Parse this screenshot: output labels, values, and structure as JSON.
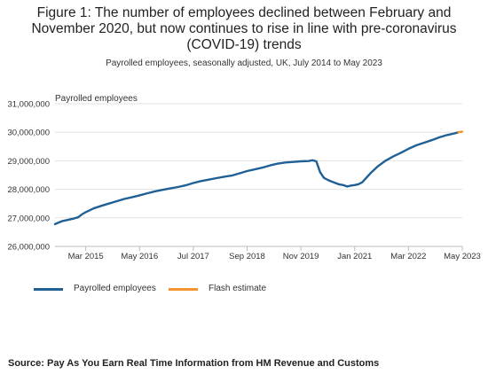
{
  "title": "Figure 1: The number of employees declined between February and November 2020, but now continues to rise in line with pre-coronavirus (COVID-19) trends",
  "subtitle": "Payrolled employees, seasonally adjusted, UK, July 2014 to May 2023",
  "source": "Source: Pay As You Earn Real Time Information from HM Revenue and Customs",
  "chart_data": {
    "type": "line",
    "ylabel": "Payrolled employees",
    "xlabel": "",
    "ylim": [
      26000000,
      31000000
    ],
    "yticks": [
      26000000,
      27000000,
      28000000,
      29000000,
      30000000,
      31000000
    ],
    "ytick_labels": [
      "26,000,000",
      "27,000,000",
      "28,000,000",
      "29,000,000",
      "30,000,000",
      "31,000,000"
    ],
    "xlim": [
      "2014-07",
      "2023-05"
    ],
    "xticks": [
      "2015-03",
      "2016-05",
      "2017-07",
      "2018-09",
      "2019-11",
      "2021-01",
      "2022-03",
      "2023-05"
    ],
    "xtick_labels": [
      "Mar 2015",
      "May 2016",
      "Jul 2017",
      "Sep 2018",
      "Nov 2019",
      "Jan 2021",
      "Mar 2022",
      "May 2023"
    ],
    "grid": "horizontal",
    "legend_position": "bottom-left",
    "series": [
      {
        "name": "Payrolled employees",
        "color": "#206095",
        "points": [
          [
            "2014-07",
            26780000
          ],
          [
            "2014-08",
            26840000
          ],
          [
            "2014-09",
            26890000
          ],
          [
            "2014-10",
            26920000
          ],
          [
            "2014-11",
            26950000
          ],
          [
            "2014-12",
            26980000
          ],
          [
            "2015-01",
            27020000
          ],
          [
            "2015-02",
            27120000
          ],
          [
            "2015-03",
            27200000
          ],
          [
            "2015-05",
            27330000
          ],
          [
            "2015-07",
            27420000
          ],
          [
            "2015-09",
            27500000
          ],
          [
            "2015-11",
            27580000
          ],
          [
            "2016-01",
            27660000
          ],
          [
            "2016-03",
            27720000
          ],
          [
            "2016-05",
            27790000
          ],
          [
            "2016-07",
            27860000
          ],
          [
            "2016-09",
            27930000
          ],
          [
            "2016-11",
            27980000
          ],
          [
            "2017-01",
            28030000
          ],
          [
            "2017-03",
            28080000
          ],
          [
            "2017-05",
            28140000
          ],
          [
            "2017-07",
            28220000
          ],
          [
            "2017-09",
            28290000
          ],
          [
            "2017-11",
            28340000
          ],
          [
            "2018-01",
            28390000
          ],
          [
            "2018-03",
            28440000
          ],
          [
            "2018-05",
            28480000
          ],
          [
            "2018-07",
            28560000
          ],
          [
            "2018-09",
            28640000
          ],
          [
            "2018-11",
            28700000
          ],
          [
            "2019-01",
            28760000
          ],
          [
            "2019-03",
            28840000
          ],
          [
            "2019-05",
            28900000
          ],
          [
            "2019-07",
            28940000
          ],
          [
            "2019-09",
            28960000
          ],
          [
            "2019-11",
            28980000
          ],
          [
            "2020-01",
            28990000
          ],
          [
            "2020-02",
            29020000
          ],
          [
            "2020-03",
            28980000
          ],
          [
            "2020-04",
            28600000
          ],
          [
            "2020-05",
            28400000
          ],
          [
            "2020-06",
            28330000
          ],
          [
            "2020-07",
            28270000
          ],
          [
            "2020-08",
            28220000
          ],
          [
            "2020-09",
            28170000
          ],
          [
            "2020-10",
            28150000
          ],
          [
            "2020-11",
            28100000
          ],
          [
            "2020-12",
            28130000
          ],
          [
            "2021-01",
            28150000
          ],
          [
            "2021-02",
            28180000
          ],
          [
            "2021-03",
            28250000
          ],
          [
            "2021-05",
            28550000
          ],
          [
            "2021-07",
            28800000
          ],
          [
            "2021-09",
            29000000
          ],
          [
            "2021-11",
            29150000
          ],
          [
            "2022-01",
            29280000
          ],
          [
            "2022-03",
            29420000
          ],
          [
            "2022-05",
            29540000
          ],
          [
            "2022-07",
            29630000
          ],
          [
            "2022-09",
            29720000
          ],
          [
            "2022-11",
            29820000
          ],
          [
            "2023-01",
            29900000
          ],
          [
            "2023-03",
            29960000
          ],
          [
            "2023-04",
            30000000
          ]
        ]
      },
      {
        "name": "Flash estimate",
        "color": "#F39431",
        "points": [
          [
            "2023-04",
            30000000
          ],
          [
            "2023-05",
            30020000
          ]
        ]
      }
    ]
  }
}
